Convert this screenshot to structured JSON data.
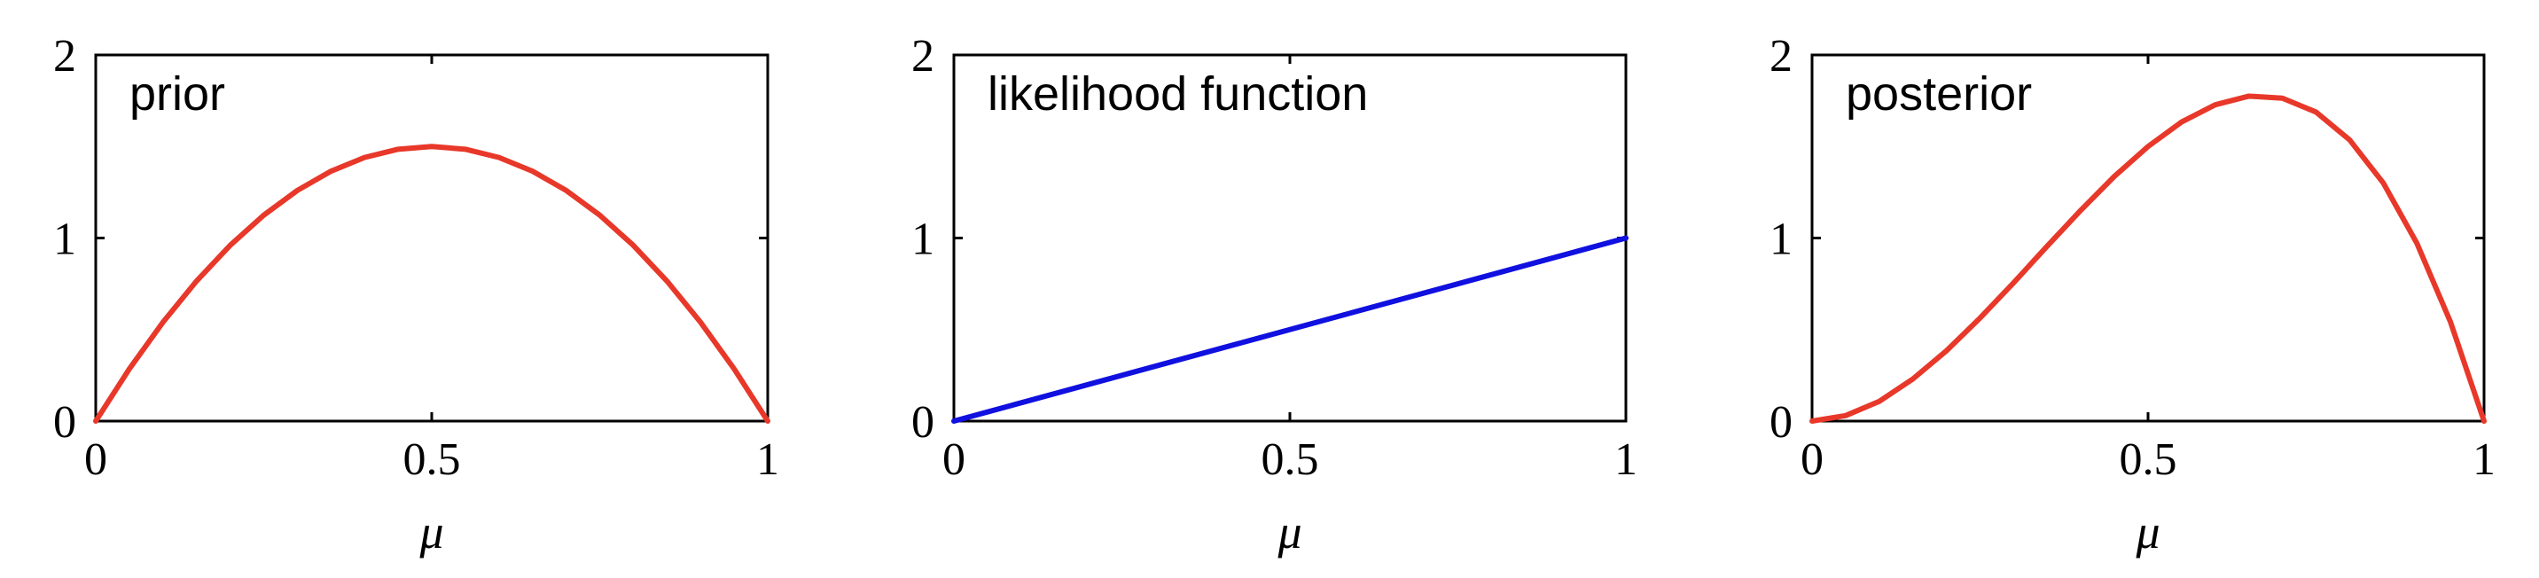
{
  "colors": {
    "prior": "#e8382a",
    "likelihood": "#1010e0",
    "posterior": "#e8382a"
  },
  "chart_data": [
    {
      "type": "line",
      "label": "prior",
      "xlabel": "μ",
      "xlim": [
        0,
        1
      ],
      "ylim": [
        0,
        2
      ],
      "xticks": [
        "0",
        "0.5",
        "1"
      ],
      "yticks": [
        "0",
        "1",
        "2"
      ],
      "series": [
        {
          "color": "#e8382a",
          "x": [
            0,
            0.05,
            0.1,
            0.15,
            0.2,
            0.25,
            0.3,
            0.35,
            0.4,
            0.45,
            0.5,
            0.55,
            0.6,
            0.65,
            0.7,
            0.75,
            0.8,
            0.85,
            0.9,
            0.95,
            1
          ],
          "y": [
            0,
            0.285,
            0.54,
            0.765,
            0.96,
            1.125,
            1.26,
            1.365,
            1.44,
            1.485,
            1.5,
            1.485,
            1.44,
            1.365,
            1.26,
            1.125,
            0.96,
            0.765,
            0.54,
            0.285,
            0
          ]
        }
      ]
    },
    {
      "type": "line",
      "label": "likelihood function",
      "xlabel": "μ",
      "xlim": [
        0,
        1
      ],
      "ylim": [
        0,
        2
      ],
      "xticks": [
        "0",
        "0.5",
        "1"
      ],
      "yticks": [
        "0",
        "1",
        "2"
      ],
      "series": [
        {
          "color": "#1010e0",
          "x": [
            0,
            1
          ],
          "y": [
            0,
            1
          ]
        }
      ]
    },
    {
      "type": "line",
      "label": "posterior",
      "xlabel": "μ",
      "xlim": [
        0,
        1
      ],
      "ylim": [
        0,
        2
      ],
      "xticks": [
        "0",
        "0.5",
        "1"
      ],
      "yticks": [
        "0",
        "1",
        "2"
      ],
      "series": [
        {
          "color": "#e8382a",
          "x": [
            0,
            0.05,
            0.1,
            0.15,
            0.2,
            0.25,
            0.3,
            0.35,
            0.4,
            0.45,
            0.5,
            0.55,
            0.6,
            0.65,
            0.7,
            0.75,
            0.8,
            0.85,
            0.9,
            0.95,
            1
          ],
          "y": [
            0,
            0.03,
            0.108,
            0.23,
            0.384,
            0.563,
            0.756,
            0.956,
            1.152,
            1.337,
            1.5,
            1.634,
            1.728,
            1.775,
            1.764,
            1.688,
            1.536,
            1.301,
            0.972,
            0.542,
            0
          ]
        }
      ]
    }
  ]
}
